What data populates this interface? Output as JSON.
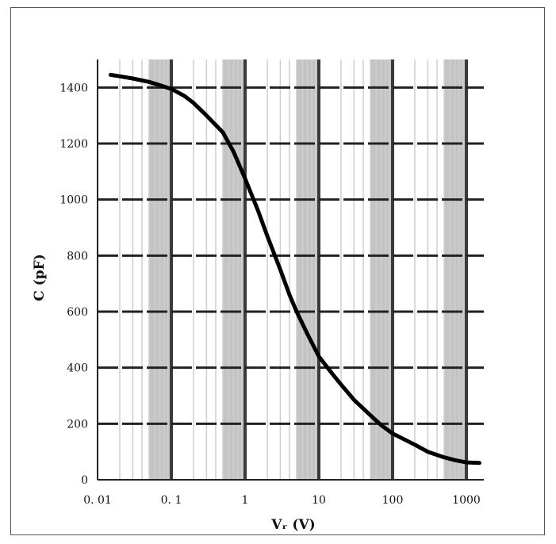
{
  "chart_data": {
    "type": "line",
    "title": "",
    "xlabel": "Vᵣ (V)",
    "ylabel": "C (pF)",
    "x_scale": "log",
    "xlim": [
      0.01,
      2000
    ],
    "ylim": [
      0,
      1500
    ],
    "x_ticks": [
      0.01,
      0.1,
      1,
      10,
      100,
      1000
    ],
    "x_tick_labels": [
      "0. 01",
      "0. 1",
      "1",
      "10",
      "100",
      "1000"
    ],
    "y_ticks": [
      0,
      200,
      400,
      600,
      800,
      1000,
      1200,
      1400
    ],
    "y_tick_labels": [
      "0",
      "200",
      "400",
      "600",
      "800",
      "1000",
      "1200",
      "1400"
    ],
    "grid": true,
    "legend": "none",
    "colors": {
      "curve": "#000000",
      "major_grid": "#3a3a3a",
      "minor_grid": "#cfcfcf",
      "band": "#c4c4c4",
      "horizontal_grid": "#222222"
    },
    "series": [
      {
        "x": [
          0.015,
          0.02,
          0.03,
          0.05,
          0.07,
          0.1,
          0.15,
          0.2,
          0.3,
          0.5,
          0.7,
          1,
          1.5,
          2,
          3,
          4,
          5,
          7,
          10,
          15,
          20,
          30,
          50,
          70,
          100,
          200,
          300,
          500,
          700,
          1000,
          1500
        ],
        "y": [
          1445,
          1440,
          1432,
          1420,
          1408,
          1395,
          1370,
          1345,
          1300,
          1240,
          1170,
          1075,
          960,
          870,
          750,
          660,
          600,
          520,
          440,
          380,
          340,
          285,
          230,
          195,
          165,
          125,
          100,
          80,
          70,
          62,
          60
        ]
      }
    ]
  }
}
